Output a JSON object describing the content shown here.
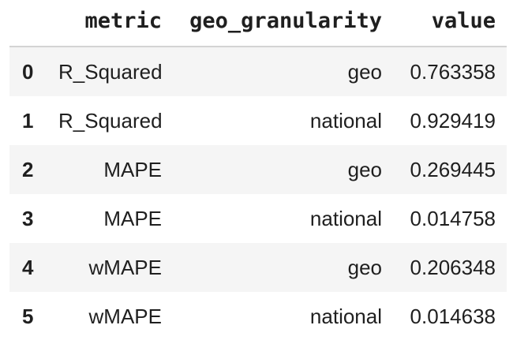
{
  "table": {
    "columns": [
      "",
      "metric",
      "geo_granularity",
      "value"
    ],
    "rows": [
      {
        "index": "0",
        "metric": "R_Squared",
        "geo_granularity": "geo",
        "value": "0.763358"
      },
      {
        "index": "1",
        "metric": "R_Squared",
        "geo_granularity": "national",
        "value": "0.929419"
      },
      {
        "index": "2",
        "metric": "MAPE",
        "geo_granularity": "geo",
        "value": "0.269445"
      },
      {
        "index": "3",
        "metric": "MAPE",
        "geo_granularity": "national",
        "value": "0.014758"
      },
      {
        "index": "4",
        "metric": "wMAPE",
        "geo_granularity": "geo",
        "value": "0.206348"
      },
      {
        "index": "5",
        "metric": "wMAPE",
        "geo_granularity": "national",
        "value": "0.014638"
      }
    ]
  },
  "chart_data": {
    "type": "table",
    "title": "",
    "columns": [
      "metric",
      "geo_granularity",
      "value"
    ],
    "records": [
      [
        "R_Squared",
        "geo",
        0.763358
      ],
      [
        "R_Squared",
        "national",
        0.929419
      ],
      [
        "MAPE",
        "geo",
        0.269445
      ],
      [
        "MAPE",
        "national",
        0.014758
      ],
      [
        "wMAPE",
        "geo",
        0.206348
      ],
      [
        "wMAPE",
        "national",
        0.014638
      ]
    ]
  },
  "colors": {
    "stripe": "#f5f5f5",
    "header_border": "#d4d4d4",
    "text": "#1f1f1f"
  }
}
